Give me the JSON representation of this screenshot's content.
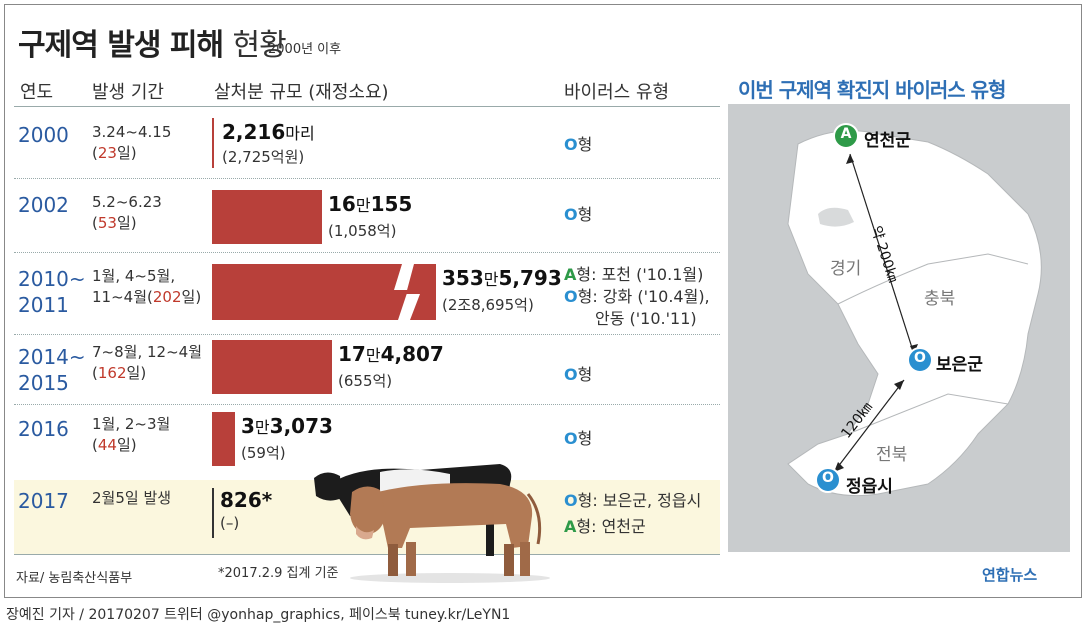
{
  "title_main": "구제역 발생 피해",
  "title_light": "현황",
  "subtitle": "2000년 이후",
  "headers": {
    "year": "연도",
    "period": "발생 기간",
    "scale": "살처분 규모 (재정소요)",
    "virus": "바이러스 유형"
  },
  "rows": [
    {
      "year": "2000",
      "period_line": "3.24~4.15",
      "days": "23",
      "value_main": "2,216",
      "value_unit": "마리",
      "value_rest": "",
      "cost": "(2,725억원)",
      "virus_lines": [
        {
          "type": "O",
          "text": "형"
        }
      ]
    },
    {
      "year": "2002",
      "period_line": "5.2~6.23",
      "days": "53",
      "value_main": "16",
      "value_unit": "만",
      "value_rest": "155",
      "cost": "(1,058억)",
      "virus_lines": [
        {
          "type": "O",
          "text": "형"
        }
      ]
    },
    {
      "year": "2010~",
      "year2": "2011",
      "period_line": "1월, 4~5월,",
      "period_line2": "11~4월",
      "days": "202",
      "value_main": "353",
      "value_unit": "만",
      "value_rest": "5,793",
      "cost": "(2조8,695억)",
      "virus_lines": [
        {
          "type": "A",
          "text": "형: 포천 ('10.1월)"
        },
        {
          "type": "O",
          "text": "형: 강화 ('10.4월),"
        },
        {
          "type": "",
          "text": "안동 ('10.'11)"
        }
      ]
    },
    {
      "year": "2014~",
      "year2": "2015",
      "period_line": "7~8월, 12~4월",
      "days": "162",
      "value_main": "17",
      "value_unit": "만",
      "value_rest": "4,807",
      "cost": "(655억)",
      "virus_lines": [
        {
          "type": "O",
          "text": "형"
        }
      ]
    },
    {
      "year": "2016",
      "period_line": "1월, 2~3월",
      "days": "44",
      "value_main": "3",
      "value_unit": "만",
      "value_rest": "3,073",
      "cost": "(59억)",
      "virus_lines": [
        {
          "type": "O",
          "text": "형"
        }
      ]
    },
    {
      "year": "2017",
      "period_line": "2월5일 발생",
      "days": "",
      "value_main": "826*",
      "value_unit": "",
      "value_rest": "",
      "cost": "(–)",
      "virus_lines": [
        {
          "type": "O",
          "text": "형: 보은군, 정읍시"
        },
        {
          "type": "A",
          "text": "형: 연천군"
        }
      ]
    }
  ],
  "day_unit": "일",
  "source": "자료/ 농림축산식품부",
  "note": "*2017.2.9 집계 기준",
  "credit": "장예진 기자 / 20170207 트위터 @yonhap_graphics, 페이스북 tuney.kr/LeYN1",
  "map": {
    "title": "이번 구제역 확진지 바이러스 유형",
    "places": [
      {
        "badge": "A",
        "name": "연천군",
        "color": "#2e9a48"
      },
      {
        "badge": "O",
        "name": "보은군",
        "color": "#2a8fd0"
      },
      {
        "badge": "O",
        "name": "정읍시",
        "color": "#2a8fd0"
      }
    ],
    "regions": [
      "경기",
      "충북",
      "전북"
    ],
    "distances": [
      "약 200㎞",
      "120㎞"
    ]
  },
  "logo": "연합뉴스",
  "chart_data": {
    "type": "bar",
    "categories": [
      "2000",
      "2002",
      "2010~2011",
      "2014~2015",
      "2016",
      "2017"
    ],
    "series": [
      {
        "values": [
          2216,
          160155,
          3535793,
          174807,
          33073,
          826
        ]
      }
    ],
    "costs_100m_won": [
      2725,
      1058,
      28695,
      655,
      59,
      null
    ],
    "durations_days": [
      23,
      53,
      202,
      162,
      44,
      null
    ],
    "bar_break": "2010~2011",
    "colors": {
      "bar": "#b8403a",
      "type_O": "#2a8fd0",
      "type_A": "#2e9a48"
    }
  }
}
